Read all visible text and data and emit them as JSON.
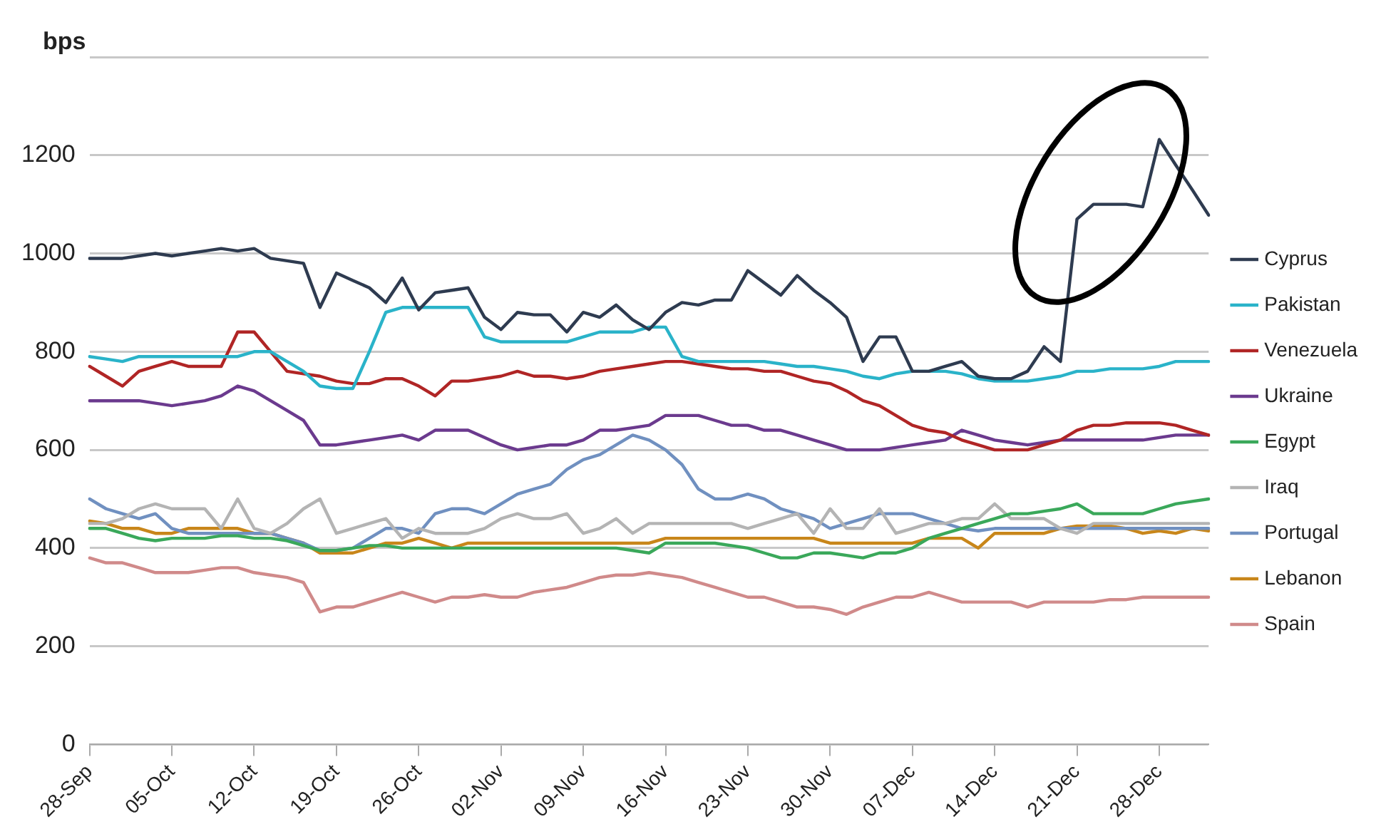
{
  "chart_data": {
    "type": "line",
    "ylabel": "bps",
    "categories": [
      "28-Sep",
      null,
      null,
      null,
      null,
      "05-Oct",
      null,
      null,
      null,
      null,
      "12-Oct",
      null,
      null,
      null,
      null,
      "19-Oct",
      null,
      null,
      null,
      null,
      "26-Oct",
      null,
      null,
      null,
      null,
      "02-Nov",
      null,
      null,
      null,
      null,
      "09-Nov",
      null,
      null,
      null,
      null,
      "16-Nov",
      null,
      null,
      null,
      null,
      "23-Nov",
      null,
      null,
      null,
      null,
      "30-Nov",
      null,
      null,
      null,
      null,
      "07-Dec",
      null,
      null,
      null,
      null,
      "14-Dec",
      null,
      null,
      null,
      null,
      "21-Dec",
      null,
      null,
      null,
      null,
      "28-Dec",
      null,
      null,
      null
    ],
    "series": [
      {
        "name": "Cyprus",
        "color": "#2e3b50",
        "values": [
          990,
          990,
          990,
          995,
          1000,
          995,
          1000,
          1005,
          1010,
          1005,
          1010,
          990,
          985,
          980,
          890,
          960,
          945,
          930,
          900,
          950,
          885,
          920,
          925,
          930,
          870,
          845,
          880,
          875,
          875,
          840,
          880,
          870,
          895,
          865,
          845,
          880,
          900,
          895,
          905,
          905,
          965,
          940,
          915,
          955,
          925,
          900,
          870,
          780,
          830,
          830,
          760,
          760,
          770,
          780,
          750,
          745,
          745,
          760,
          810,
          780,
          1070,
          1100,
          1100,
          1100,
          1095,
          1232,
          1180,
          1130,
          1078
        ]
      },
      {
        "name": "Pakistan",
        "color": "#2ab3c9",
        "values": [
          790,
          785,
          780,
          790,
          790,
          790,
          790,
          790,
          790,
          790,
          800,
          800,
          780,
          760,
          730,
          725,
          725,
          800,
          880,
          890,
          890,
          890,
          890,
          890,
          830,
          820,
          820,
          820,
          820,
          820,
          830,
          840,
          840,
          840,
          850,
          850,
          790,
          780,
          780,
          780,
          780,
          780,
          775,
          770,
          770,
          765,
          760,
          750,
          745,
          755,
          760,
          760,
          760,
          755,
          745,
          740,
          740,
          740,
          745,
          750,
          760,
          760,
          765,
          765,
          765,
          770,
          780,
          780,
          780
        ]
      },
      {
        "name": "Venezuela",
        "color": "#b02525",
        "values": [
          770,
          750,
          730,
          760,
          770,
          780,
          770,
          770,
          770,
          840,
          840,
          800,
          760,
          755,
          750,
          740,
          735,
          735,
          745,
          745,
          730,
          710,
          740,
          740,
          745,
          750,
          760,
          750,
          750,
          745,
          750,
          760,
          765,
          770,
          775,
          780,
          780,
          775,
          770,
          765,
          765,
          760,
          760,
          750,
          740,
          735,
          720,
          700,
          690,
          670,
          650,
          640,
          635,
          620,
          610,
          600,
          600,
          600,
          610,
          620,
          640,
          650,
          650,
          655,
          655,
          655,
          650,
          640,
          630
        ]
      },
      {
        "name": "Ukraine",
        "color": "#6b3a8e",
        "values": [
          700,
          700,
          700,
          700,
          695,
          690,
          695,
          700,
          710,
          730,
          720,
          700,
          680,
          660,
          610,
          610,
          615,
          620,
          625,
          630,
          620,
          640,
          640,
          640,
          625,
          610,
          600,
          605,
          610,
          610,
          620,
          640,
          640,
          645,
          650,
          670,
          670,
          670,
          660,
          650,
          650,
          640,
          640,
          630,
          620,
          610,
          600,
          600,
          600,
          605,
          610,
          615,
          620,
          640,
          630,
          620,
          615,
          610,
          615,
          620,
          620,
          620,
          620,
          620,
          620,
          625,
          630,
          630,
          630
        ]
      },
      {
        "name": "Egypt",
        "color": "#3aa85a",
        "values": [
          440,
          440,
          430,
          420,
          415,
          420,
          420,
          420,
          425,
          425,
          420,
          420,
          415,
          405,
          395,
          395,
          400,
          405,
          405,
          400,
          400,
          400,
          400,
          400,
          400,
          400,
          400,
          400,
          400,
          400,
          400,
          400,
          400,
          395,
          390,
          410,
          410,
          410,
          410,
          405,
          400,
          390,
          380,
          380,
          390,
          390,
          385,
          380,
          390,
          390,
          400,
          420,
          430,
          440,
          450,
          460,
          470,
          470,
          475,
          480,
          490,
          470,
          470,
          470,
          470,
          480,
          490,
          495,
          500
        ]
      },
      {
        "name": "Iraq",
        "color": "#b4b4b4",
        "values": [
          450,
          450,
          460,
          480,
          490,
          480,
          480,
          480,
          440,
          500,
          440,
          430,
          450,
          480,
          500,
          430,
          440,
          450,
          460,
          420,
          440,
          430,
          430,
          430,
          440,
          460,
          470,
          460,
          460,
          470,
          430,
          440,
          460,
          430,
          450,
          450,
          450,
          450,
          450,
          450,
          440,
          450,
          460,
          470,
          430,
          480,
          440,
          440,
          480,
          430,
          440,
          450,
          450,
          460,
          460,
          490,
          460,
          460,
          460,
          440,
          430,
          450,
          450,
          450,
          450,
          450,
          450,
          450,
          450
        ]
      },
      {
        "name": "Portugal",
        "color": "#7090c0",
        "values": [
          500,
          480,
          470,
          460,
          470,
          440,
          430,
          430,
          430,
          430,
          430,
          430,
          420,
          410,
          395,
          395,
          400,
          420,
          440,
          440,
          430,
          470,
          480,
          480,
          470,
          490,
          510,
          520,
          530,
          560,
          580,
          590,
          610,
          630,
          620,
          600,
          570,
          520,
          500,
          500,
          510,
          500,
          480,
          470,
          460,
          440,
          450,
          460,
          470,
          470,
          470,
          460,
          450,
          440,
          435,
          440,
          440,
          440,
          440,
          440,
          440,
          440,
          440,
          440,
          440,
          440,
          440,
          440,
          440
        ]
      },
      {
        "name": "Lebanon",
        "color": "#c8861a",
        "values": [
          455,
          450,
          440,
          440,
          430,
          430,
          440,
          440,
          440,
          440,
          430,
          430,
          420,
          410,
          390,
          390,
          390,
          400,
          410,
          410,
          420,
          410,
          400,
          410,
          410,
          410,
          410,
          410,
          410,
          410,
          410,
          410,
          410,
          410,
          410,
          420,
          420,
          420,
          420,
          420,
          420,
          420,
          420,
          420,
          420,
          410,
          410,
          410,
          410,
          410,
          410,
          420,
          420,
          420,
          400,
          430,
          430,
          430,
          430,
          440,
          445,
          445,
          445,
          440,
          430,
          435,
          430,
          440,
          435
        ]
      },
      {
        "name": "Spain",
        "color": "#d08a8a",
        "values": [
          380,
          370,
          370,
          360,
          350,
          350,
          350,
          355,
          360,
          360,
          350,
          345,
          340,
          330,
          270,
          280,
          280,
          290,
          300,
          310,
          300,
          290,
          300,
          300,
          305,
          300,
          300,
          310,
          315,
          320,
          330,
          340,
          345,
          345,
          350,
          345,
          340,
          330,
          320,
          310,
          300,
          300,
          290,
          280,
          280,
          275,
          265,
          280,
          290,
          300,
          300,
          310,
          300,
          290,
          290,
          290,
          290,
          280,
          290,
          290,
          290,
          290,
          295,
          295,
          300,
          300,
          300,
          300,
          300
        ]
      }
    ],
    "ylim": [
      0,
      1400
    ],
    "yticks": [
      0,
      200,
      400,
      600,
      800,
      1000,
      1200,
      {
        "value": 1400,
        "label": null
      }
    ],
    "grid": "y",
    "legend": "right",
    "marker": "none",
    "line_style": "solid"
  }
}
